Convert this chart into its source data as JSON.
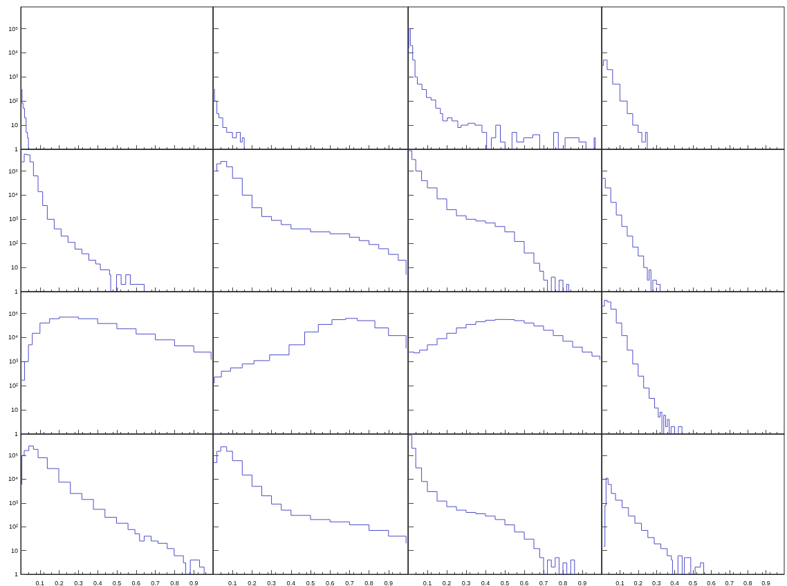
{
  "chart_data": [
    {
      "type": "step",
      "x": [
        0,
        0.007,
        0.012,
        0.02,
        0.028,
        0.035,
        0.04
      ],
      "values": [
        300,
        80,
        50,
        20,
        5,
        3,
        1
      ],
      "color": "#4b4bc8",
      "xlim": [
        0,
        1
      ],
      "ylim": [
        1,
        800000
      ],
      "xticks": [
        0.1,
        0.2,
        0.3,
        0.4,
        0.5,
        0.6,
        0.7,
        0.8,
        0.9
      ],
      "yticks": [
        1,
        10,
        {
          "value": 100,
          "label": "10²"
        },
        {
          "value": 1000,
          "label": "10³"
        },
        {
          "value": 10000,
          "label": "10⁴"
        },
        {
          "value": 100000,
          "label": "10⁵"
        }
      ],
      "log": "y",
      "tick_labels": "y"
    },
    {
      "type": "step",
      "x": [
        0,
        0.008,
        0.02,
        0.03,
        0.05,
        0.07,
        0.1,
        0.12,
        0.14,
        0.15,
        0.16
      ],
      "values": [
        300,
        100,
        30,
        20,
        8,
        5,
        3,
        5,
        2,
        3,
        1
      ],
      "color": "#4b4bc8",
      "xlim": [
        0,
        1
      ],
      "ylim": [
        1,
        800000
      ],
      "xticks": [
        0.1,
        0.2,
        0.3,
        0.4,
        0.5,
        0.6,
        0.7,
        0.8,
        0.9
      ],
      "yticks": [
        1,
        10,
        100,
        1000,
        10000,
        100000
      ],
      "log": "y",
      "tick_labels": false
    },
    {
      "type": "step",
      "x": [
        0,
        0.004,
        0.012,
        0.024,
        0.036,
        0.048,
        0.072,
        0.095,
        0.119,
        0.143,
        0.167,
        0.179,
        0.203,
        0.227,
        0.257,
        0.274,
        0.31,
        0.346,
        0.382,
        0.406,
        0.43,
        0.453,
        0.477,
        0.501,
        0.537,
        0.561,
        0.597,
        0.644,
        0.68,
        0.752,
        0.776,
        0.811,
        0.883,
        0.919,
        0.961,
        0.967
      ],
      "values": [
        15000,
        100000,
        20000,
        5000,
        1000,
        500,
        300,
        140,
        110,
        50,
        30,
        15,
        20,
        15,
        8,
        10,
        12,
        10,
        5,
        1,
        3,
        10,
        2,
        1,
        5,
        2,
        3,
        4,
        1,
        5,
        1,
        3,
        2,
        1,
        3,
        1
      ],
      "color": "#4b4bc8",
      "xlim": [
        0,
        1
      ],
      "ylim": [
        1,
        800000
      ],
      "xticks": [
        0.1,
        0.2,
        0.3,
        0.4,
        0.5,
        0.6,
        0.7,
        0.8,
        0.9
      ],
      "yticks": [
        1,
        10,
        100,
        1000,
        10000,
        100000
      ],
      "log": "y",
      "tick_labels": false
    },
    {
      "type": "step",
      "x": [
        0,
        0.01,
        0.03,
        0.06,
        0.1,
        0.14,
        0.17,
        0.2,
        0.22,
        0.24,
        0.25
      ],
      "values": [
        3000,
        5000,
        2000,
        500,
        100,
        30,
        10,
        5,
        2,
        5,
        1
      ],
      "color": "#4b4bc8",
      "xlim": [
        0,
        1
      ],
      "ylim": [
        1,
        800000
      ],
      "xticks": [
        0.1,
        0.2,
        0.3,
        0.4,
        0.5,
        0.6,
        0.7,
        0.8,
        0.9
      ],
      "yticks": [
        1,
        10,
        100,
        1000,
        10000,
        100000
      ],
      "log": "y",
      "tick_labels": false
    },
    {
      "type": "step",
      "x": [
        0,
        0.018,
        0.03,
        0.048,
        0.066,
        0.09,
        0.114,
        0.138,
        0.174,
        0.21,
        0.246,
        0.282,
        0.318,
        0.354,
        0.39,
        0.414,
        0.462,
        0.468,
        0.498,
        0.522,
        0.546,
        0.57,
        0.594,
        0.618,
        0.642
      ],
      "values": [
        240000,
        500000,
        470000,
        240000,
        63000,
        14000,
        3700,
        1000,
        400,
        200,
        110,
        58,
        37,
        20,
        14,
        8,
        5,
        1,
        5,
        2,
        5,
        2,
        2,
        2,
        1
      ],
      "color": "#4b4bc8",
      "xlim": [
        0,
        1
      ],
      "ylim": [
        1,
        800000
      ],
      "xticks": [
        0.1,
        0.2,
        0.3,
        0.4,
        0.5,
        0.6,
        0.7,
        0.8,
        0.9
      ],
      "yticks": [
        1,
        10,
        {
          "value": 100,
          "label": "10²"
        },
        {
          "value": 1000,
          "label": "10³"
        },
        {
          "value": 10000,
          "label": "10⁴"
        },
        {
          "value": 100000,
          "label": "10⁵"
        }
      ],
      "log": "y",
      "tick_labels": "y"
    },
    {
      "type": "step",
      "x": [
        0,
        0.02,
        0.04,
        0.07,
        0.1,
        0.15,
        0.2,
        0.25,
        0.3,
        0.35,
        0.4,
        0.5,
        0.6,
        0.7,
        0.75,
        0.8,
        0.85,
        0.9,
        0.95,
        0.99
      ],
      "values": [
        100000,
        200000,
        250000,
        150000,
        50000,
        10000,
        3000,
        1300,
        900,
        600,
        400,
        300,
        250,
        180,
        130,
        90,
        60,
        35,
        20,
        5
      ],
      "color": "#4b4bc8",
      "xlim": [
        0,
        1
      ],
      "ylim": [
        1,
        800000
      ],
      "xticks": [
        0.1,
        0.2,
        0.3,
        0.4,
        0.5,
        0.6,
        0.7,
        0.8,
        0.9
      ],
      "yticks": [
        1,
        10,
        100,
        1000,
        10000,
        100000
      ],
      "log": "y",
      "tick_labels": false
    },
    {
      "type": "step",
      "x": [
        0,
        0.02,
        0.04,
        0.07,
        0.1,
        0.15,
        0.2,
        0.25,
        0.3,
        0.35,
        0.4,
        0.45,
        0.5,
        0.55,
        0.6,
        0.65,
        0.68,
        0.7,
        0.72,
        0.74,
        0.76,
        0.78,
        0.8,
        0.82,
        0.83
      ],
      "values": [
        700000,
        300000,
        100000,
        40000,
        20000,
        7000,
        2500,
        1400,
        1000,
        850,
        700,
        500,
        300,
        120,
        40,
        15,
        7,
        3,
        1,
        4,
        1,
        3,
        1,
        2,
        1
      ],
      "color": "#4b4bc8",
      "xlim": [
        0,
        1
      ],
      "ylim": [
        1,
        800000
      ],
      "xticks": [
        0.1,
        0.2,
        0.3,
        0.4,
        0.5,
        0.6,
        0.7,
        0.8,
        0.9
      ],
      "yticks": [
        1,
        10,
        100,
        1000,
        10000,
        100000
      ],
      "log": "y",
      "tick_labels": false
    },
    {
      "type": "step",
      "x": [
        0,
        0.02,
        0.05,
        0.08,
        0.11,
        0.14,
        0.17,
        0.2,
        0.23,
        0.25,
        0.26,
        0.27,
        0.28,
        0.3,
        0.32
      ],
      "values": [
        50000,
        20000,
        5000,
        1500,
        500,
        200,
        70,
        30,
        10,
        3,
        8,
        1,
        3,
        2,
        1
      ],
      "color": "#4b4bc8",
      "xlim": [
        0,
        1
      ],
      "ylim": [
        1,
        800000
      ],
      "xticks": [
        0.1,
        0.2,
        0.3,
        0.4,
        0.5,
        0.6,
        0.7,
        0.8,
        0.9
      ],
      "yticks": [
        1,
        10,
        100,
        1000,
        10000,
        100000
      ],
      "log": "y",
      "tick_labels": false
    },
    {
      "type": "step",
      "x": [
        0,
        0.02,
        0.04,
        0.06,
        0.1,
        0.15,
        0.2,
        0.25,
        0.3,
        0.4,
        0.5,
        0.6,
        0.7,
        0.8,
        0.9,
        0.99
      ],
      "values": [
        170,
        1000,
        5000,
        15000,
        40000,
        60000,
        70000,
        70000,
        60000,
        38000,
        23000,
        14000,
        8000,
        4500,
        2500,
        1200
      ],
      "color": "#4b4bc8",
      "xlim": [
        0,
        1
      ],
      "ylim": [
        1,
        800000
      ],
      "xticks": [
        0.1,
        0.2,
        0.3,
        0.4,
        0.5,
        0.6,
        0.7,
        0.8,
        0.9
      ],
      "yticks": [
        1,
        10,
        {
          "value": 100,
          "label": "10²"
        },
        {
          "value": 1000,
          "label": "10³"
        },
        {
          "value": 10000,
          "label": "10⁴"
        },
        {
          "value": 100000,
          "label": "10⁵"
        }
      ],
      "log": "y",
      "tick_labels": "y"
    },
    {
      "type": "step",
      "x": [
        0,
        0.007,
        0.043,
        0.09,
        0.15,
        0.21,
        0.29,
        0.39,
        0.47,
        0.54,
        0.61,
        0.68,
        0.74,
        0.83,
        0.9,
        0.99
      ],
      "values": [
        130,
        230,
        400,
        550,
        800,
        1100,
        1900,
        5000,
        17000,
        35000,
        55000,
        62000,
        50000,
        25000,
        12000,
        3500
      ],
      "color": "#4b4bc8",
      "xlim": [
        0,
        1
      ],
      "ylim": [
        1,
        800000
      ],
      "xticks": [
        0.1,
        0.2,
        0.3,
        0.4,
        0.5,
        0.6,
        0.7,
        0.8,
        0.9
      ],
      "yticks": [
        1,
        10,
        100,
        1000,
        10000,
        100000
      ],
      "log": "y",
      "tick_labels": false
    },
    {
      "type": "step",
      "x": [
        0,
        0.03,
        0.06,
        0.1,
        0.15,
        0.2,
        0.25,
        0.3,
        0.35,
        0.4,
        0.45,
        0.5,
        0.55,
        0.6,
        0.65,
        0.7,
        0.75,
        0.8,
        0.85,
        0.9,
        0.95,
        0.99
      ],
      "values": [
        2500,
        2300,
        3000,
        5000,
        9000,
        15000,
        25000,
        35000,
        45000,
        52000,
        56000,
        55000,
        50000,
        40000,
        30000,
        20000,
        12000,
        7000,
        4000,
        2500,
        1700,
        1200
      ],
      "color": "#4b4bc8",
      "xlim": [
        0,
        1
      ],
      "ylim": [
        1,
        800000
      ],
      "xticks": [
        0.1,
        0.2,
        0.3,
        0.4,
        0.5,
        0.6,
        0.7,
        0.8,
        0.9
      ],
      "yticks": [
        1,
        10,
        100,
        1000,
        10000,
        100000
      ],
      "log": "y",
      "tick_labels": false
    },
    {
      "type": "step",
      "x": [
        0,
        0.015,
        0.03,
        0.05,
        0.08,
        0.11,
        0.14,
        0.17,
        0.2,
        0.23,
        0.26,
        0.29,
        0.31,
        0.32,
        0.33,
        0.34,
        0.35,
        0.36,
        0.37,
        0.38,
        0.4,
        0.42,
        0.44
      ],
      "values": [
        200000,
        350000,
        300000,
        150000,
        40000,
        12000,
        3000,
        800,
        250,
        80,
        30,
        12,
        5,
        8,
        1,
        6,
        2,
        4,
        1,
        2,
        1,
        2,
        1
      ],
      "color": "#4b4bc8",
      "xlim": [
        0,
        1
      ],
      "ylim": [
        1,
        800000
      ],
      "xticks": [
        0.1,
        0.2,
        0.3,
        0.4,
        0.5,
        0.6,
        0.7,
        0.8,
        0.9
      ],
      "yticks": [
        1,
        10,
        100,
        1000,
        10000,
        100000
      ],
      "log": "y",
      "tick_labels": false
    },
    {
      "type": "step",
      "x": [
        0,
        0.006,
        0.018,
        0.042,
        0.066,
        0.09,
        0.138,
        0.198,
        0.258,
        0.318,
        0.378,
        0.438,
        0.498,
        0.558,
        0.594,
        0.618,
        0.642,
        0.678,
        0.714,
        0.762,
        0.798,
        0.846,
        0.858,
        0.882,
        0.93,
        0.954
      ],
      "values": [
        6000,
        100000,
        160000,
        250000,
        180000,
        80000,
        28000,
        7500,
        2500,
        1400,
        540,
        250,
        140,
        76,
        50,
        25,
        40,
        25,
        20,
        12,
        6,
        3,
        1,
        4,
        2,
        1
      ],
      "color": "#4b4bc8",
      "xlim": [
        0,
        1
      ],
      "ylim": [
        1,
        800000
      ],
      "xticks": [
        0.1,
        0.2,
        0.3,
        0.4,
        0.5,
        0.6,
        0.7,
        0.8,
        0.9
      ],
      "yticks": [
        1,
        10,
        {
          "value": 100,
          "label": "10²"
        },
        {
          "value": 1000,
          "label": "10³"
        },
        {
          "value": 10000,
          "label": "10⁴"
        },
        {
          "value": 100000,
          "label": "10⁵"
        }
      ],
      "log": "y"
    },
    {
      "type": "step",
      "x": [
        0,
        0.02,
        0.04,
        0.07,
        0.1,
        0.15,
        0.2,
        0.25,
        0.3,
        0.35,
        0.4,
        0.5,
        0.6,
        0.7,
        0.8,
        0.9,
        0.99
      ],
      "values": [
        50000,
        150000,
        230000,
        150000,
        60000,
        15000,
        5000,
        2000,
        900,
        500,
        300,
        200,
        160,
        120,
        70,
        40,
        20
      ],
      "color": "#4b4bc8",
      "xlim": [
        0,
        1
      ],
      "ylim": [
        1,
        800000
      ],
      "xticks": [
        0.1,
        0.2,
        0.3,
        0.4,
        0.5,
        0.6,
        0.7,
        0.8,
        0.9
      ],
      "yticks": [
        1,
        10,
        100,
        1000,
        10000,
        100000
      ],
      "log": "y",
      "tick_labels": "x"
    },
    {
      "type": "step",
      "x": [
        0,
        0.02,
        0.04,
        0.07,
        0.1,
        0.15,
        0.2,
        0.25,
        0.3,
        0.35,
        0.4,
        0.45,
        0.5,
        0.55,
        0.6,
        0.65,
        0.68,
        0.7,
        0.72,
        0.74,
        0.76,
        0.78,
        0.8,
        0.82,
        0.84,
        0.86
      ],
      "values": [
        700000,
        200000,
        30000,
        8000,
        3000,
        1200,
        700,
        500,
        400,
        350,
        280,
        200,
        120,
        60,
        30,
        12,
        5,
        1,
        4,
        2,
        5,
        1,
        3,
        1,
        4,
        1
      ],
      "color": "#4b4bc8",
      "xlim": [
        0,
        1
      ],
      "ylim": [
        1,
        800000
      ],
      "xticks": [
        0.1,
        0.2,
        0.3,
        0.4,
        0.5,
        0.6,
        0.7,
        0.8,
        0.9
      ],
      "yticks": [
        1,
        10,
        100,
        1000,
        10000,
        100000
      ],
      "log": "y",
      "tick_labels": "x"
    },
    {
      "type": "step",
      "x": [
        0.012,
        0.018,
        0.024,
        0.035,
        0.053,
        0.076,
        0.112,
        0.147,
        0.182,
        0.218,
        0.253,
        0.288,
        0.324,
        0.359,
        0.382,
        0.388,
        0.418,
        0.441,
        0.453,
        0.488,
        0.512,
        0.541,
        0.559
      ],
      "values": [
        15,
        800,
        11000,
        6000,
        2500,
        1300,
        630,
        280,
        140,
        70,
        35,
        19,
        12,
        6,
        4,
        1,
        6,
        1,
        5,
        1,
        2,
        3,
        1
      ],
      "color": "#4b4bc8",
      "xlim": [
        0,
        1
      ],
      "ylim": [
        1,
        800000
      ],
      "xticks": [
        0.1,
        0.2,
        0.3,
        0.4,
        0.5,
        0.6,
        0.7,
        0.8,
        0.9
      ],
      "yticks": [
        1,
        10,
        100,
        1000,
        10000,
        100000
      ],
      "log": "y",
      "tick_labels": "x"
    }
  ]
}
